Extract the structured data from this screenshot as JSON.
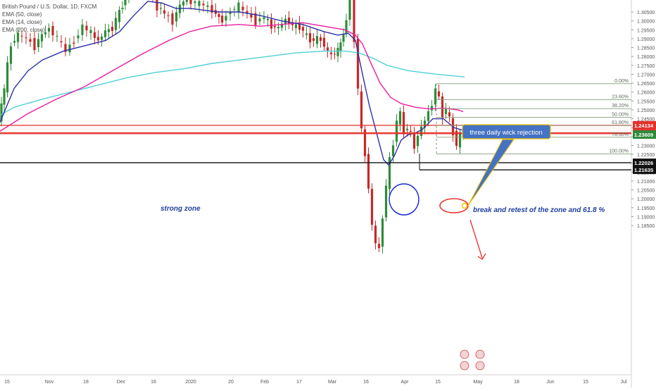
{
  "chart_data": {
    "type": "candlestick",
    "title": "British Pound / U.S. Dollar, 1D, FXCM",
    "legend": [
      {
        "name": "EMA (50, close)",
        "color": "#e91ea0"
      },
      {
        "name": "EMA (14, close)",
        "color": "#2b2fa8"
      },
      {
        "name": "EMA (200, close)",
        "color": "#4fd0d8"
      }
    ],
    "y_range": [
      1.18,
      1.3105
    ],
    "y_ticks": [
      "1.30500",
      "1.30000",
      "1.29500",
      "1.29000",
      "1.28500",
      "1.28000",
      "1.27500",
      "1.27000",
      "1.26500",
      "1.26000",
      "1.25500",
      "1.25000",
      "1.24500",
      "1.24000",
      "1.23500",
      "1.23000",
      "1.22500",
      "1.22000",
      "1.21500",
      "1.21000",
      "1.20500",
      "1.20000",
      "1.19500",
      "1.19000",
      "1.18500"
    ],
    "x_ticks": [
      "15",
      "Nov",
      "18",
      "Dec",
      "16",
      "2020",
      "20",
      "Feb",
      "17",
      "Mar",
      "16",
      "Apr",
      "15",
      "May",
      "18",
      "Jun",
      "15",
      "Jul"
    ],
    "price_labels": [
      {
        "text": "1.24134",
        "value": 1.24134,
        "color": "#e5302a"
      },
      {
        "text": "1.23660",
        "value": 1.2366,
        "color": "#e5302a"
      },
      {
        "text": "1.23609",
        "value": 1.23609,
        "color": "#2f8a3b"
      },
      {
        "text": "1.22026",
        "value": 1.22026,
        "color": "#111111"
      },
      {
        "text": "1.21635",
        "value": 1.21635,
        "color": "#111111"
      }
    ],
    "fibonacci": [
      {
        "label": "0.00%",
        "value": 1.2647
      },
      {
        "label": "23.60%",
        "value": 1.2557
      },
      {
        "label": "38.20%",
        "value": 1.2507
      },
      {
        "label": "50.00%",
        "value": 1.2458
      },
      {
        "label": "61.80%",
        "value": 1.2412
      },
      {
        "label": "78.60%",
        "value": 1.2346
      },
      {
        "label": "100.00%",
        "value": 1.2252
      }
    ],
    "horizontal_lines": [
      {
        "value": 1.2413,
        "color": "#e5302a"
      },
      {
        "value": 1.2371,
        "color": "#e5302a"
      },
      {
        "value": 1.2366,
        "color": "#e5302a"
      },
      {
        "value": 1.2203,
        "color": "#111111"
      },
      {
        "value": 1.2163,
        "color": "#111111"
      }
    ],
    "annotations": {
      "strong_zone": "strong zone",
      "break_retest": "break and retest of the zone and 61.8 %",
      "callout": "three daily wick rejection"
    },
    "colors": {
      "up": "#2e8b3a",
      "down": "#c62828",
      "callout_fill": "#4472c4",
      "callout_border": "#f2c200"
    }
  }
}
